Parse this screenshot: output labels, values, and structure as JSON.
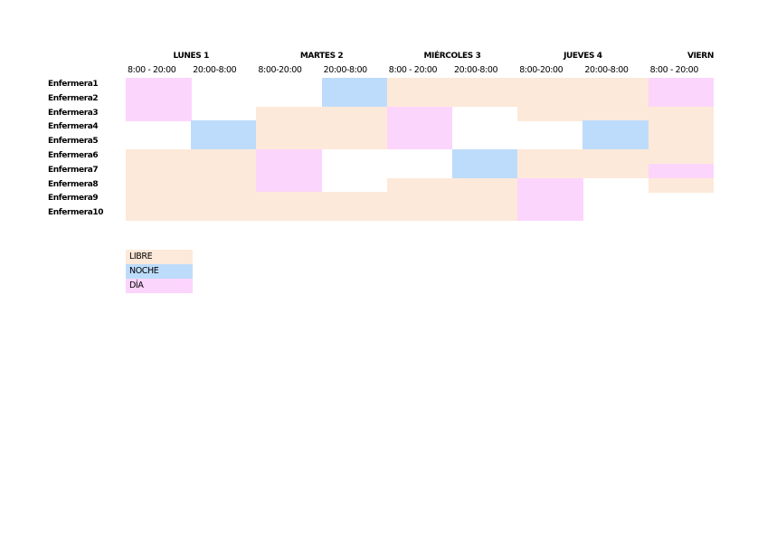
{
  "schedule": {
    "days": [
      "LUNES 1",
      "MARTES 2",
      "MIÉRCOLES 3",
      "JUEVES 4",
      "VIERN"
    ],
    "shifts": [
      "8:00 - 20:00",
      "20:00-8:00",
      "8:00-20:00",
      "20:00-8:00",
      "8:00 - 20:00",
      "20:00-8:00",
      "8:00-20:00",
      "20:00-8:00",
      "8:00 - 20:00"
    ],
    "nurses": [
      "Enfermera1",
      "Enfermera2",
      "Enfermera3",
      "Enfermera4",
      "Enfermera5",
      "Enfermera6",
      "Enfermera7",
      "Enfermera8",
      "Enfermera9",
      "Enfermera10"
    ],
    "cells": [
      [
        2,
        null,
        null,
        1,
        0,
        0,
        0,
        0,
        2
      ],
      [
        2,
        null,
        null,
        1,
        0,
        0,
        0,
        0,
        2
      ],
      [
        2,
        null,
        0,
        0,
        2,
        null,
        0,
        0,
        0
      ],
      [
        null,
        1,
        0,
        0,
        2,
        null,
        null,
        1,
        0
      ],
      [
        null,
        1,
        0,
        0,
        2,
        null,
        null,
        1,
        0
      ],
      [
        0,
        0,
        2,
        null,
        null,
        1,
        0,
        0,
        0
      ],
      [
        0,
        0,
        2,
        null,
        null,
        1,
        0,
        0,
        2
      ],
      [
        0,
        0,
        2,
        null,
        0,
        0,
        2,
        null,
        0
      ],
      [
        0,
        0,
        0,
        0,
        0,
        0,
        2,
        null,
        null
      ],
      [
        0,
        0,
        0,
        0,
        0,
        0,
        2,
        null,
        null
      ]
    ],
    "legend": [
      {
        "label": "LIBRE",
        "color": "#fde9d9"
      },
      {
        "label": "NOCHE",
        "color": "#bddcfb"
      },
      {
        "label": "DÍA",
        "color": "#fcd5fc"
      }
    ]
  }
}
